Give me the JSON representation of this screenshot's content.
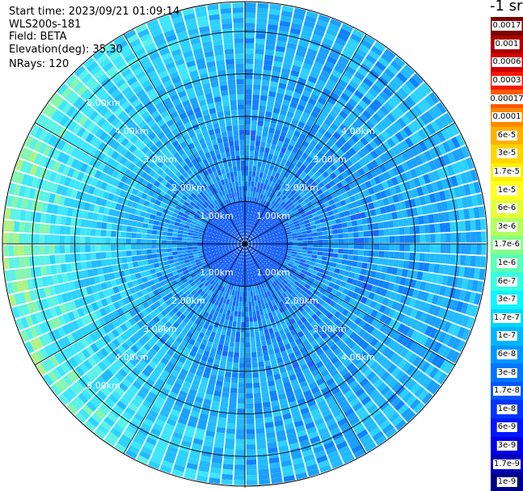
{
  "header": {
    "start_time": "Start time: 2023/09/21 01:09:14",
    "instrument": "WLS200s-181",
    "field": "Field: BETA",
    "elevation": "Elevation(deg): 35.30",
    "nrays": "NRays: 120"
  },
  "colorbar": {
    "title": "-1 sr",
    "labels": [
      "0.0017",
      "0.001",
      "0.0006",
      "0.0003",
      "0.00017",
      "0.0001",
      "6e-5",
      "3e-5",
      "1.7e-5",
      "1e-5",
      "6e-6",
      "3e-6",
      "1.7e-6",
      "1e-6",
      "6e-7",
      "3e-7",
      "1.7e-7",
      "1e-7",
      "6e-8",
      "3e-8",
      "1.7e-8",
      "1e-8",
      "6e-9",
      "3e-9",
      "1.7e-9",
      "1e-9"
    ],
    "colors": [
      "#7a0000",
      "#a80000",
      "#d40000",
      "#f51a00",
      "#ff5a00",
      "#ff8a00",
      "#ffb000",
      "#ffd400",
      "#ffee00",
      "#ffff20",
      "#e4ff3a",
      "#b4ff60",
      "#86ff8a",
      "#5cffb4",
      "#36ffe0",
      "#10f4ff",
      "#00d6ff",
      "#00b6ff",
      "#0096ff",
      "#0076ff",
      "#0056ff",
      "#0036ff",
      "#0018ff",
      "#0000e8",
      "#0000b8",
      "#000086"
    ]
  },
  "chart_data": {
    "type": "heatmap",
    "description_kind": "PPI polar scan of backscatter",
    "nrays": 120,
    "range_rings_km": [
      1,
      2,
      3,
      4,
      5
    ],
    "ring_labels": [
      "1.00km",
      "2.00km",
      "3.00km",
      "4.00km",
      "5.00km"
    ],
    "max_range_km": 5.7,
    "inner_region_km": 1.0,
    "field": "BETA",
    "units": "-1 sr",
    "value_range": [
      1e-09,
      0.0017
    ],
    "typical_value_center": "3e-8",
    "typical_value_outer_edge_west": "3e-6",
    "spoke_angles_deg": [
      0,
      30,
      60,
      90,
      120,
      150,
      180,
      210,
      240,
      270,
      300,
      330
    ]
  }
}
